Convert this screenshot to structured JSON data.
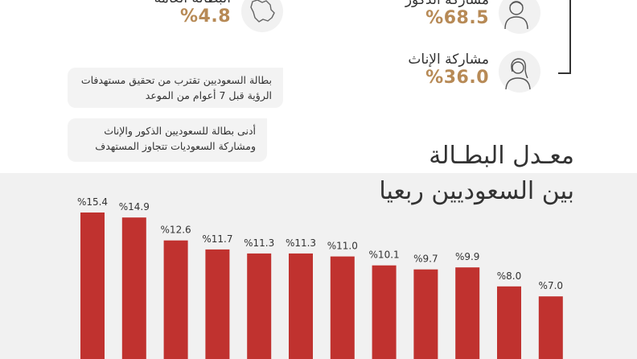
{
  "stats": {
    "unemployment_general": {
      "label": "البطالة العامة",
      "value": "%4.8"
    },
    "male_participation": {
      "label": "مشاركة الذكور",
      "value": "%68.5"
    },
    "female_participation": {
      "label": "مشاركة الإناث",
      "value": "%36.0"
    }
  },
  "highlights": [
    {
      "line1": "بطالة السعوديين تقترب من تحقيق مستهدفات",
      "line2": "الرؤية قبل 7 أعوام من الموعد"
    },
    {
      "line1": "أدنى بطالة للسعوديين الذكور والإناث",
      "line2": "ومشاركة السعوديات تتجاوز المستهدف"
    }
  ],
  "icons": {
    "map": "saudi-map-icon",
    "male": "male-person-icon",
    "female": "female-person-icon"
  },
  "colors": {
    "bar": "#c0322f",
    "bar_gradient_top": "#c0322f",
    "bar_gradient_bottom": "#e05a40",
    "value_accent": "#b78a56"
  },
  "chart_data": {
    "type": "bar",
    "title_line1": "معـدل البطـالة",
    "title_line2": "بين السعوديين ربعيا",
    "value_labels": [
      "%15.4",
      "%14.9",
      "%12.6",
      "%11.7",
      "%11.3",
      "%11.3",
      "%11.0",
      "%10.1",
      "%9.7",
      "%9.9",
      "%8.0",
      "%7.0"
    ],
    "values": [
      15.4,
      14.9,
      12.6,
      11.7,
      11.3,
      11.3,
      11.0,
      10.1,
      9.7,
      9.9,
      8.0,
      7.0
    ],
    "ylim": [
      0,
      16
    ]
  }
}
